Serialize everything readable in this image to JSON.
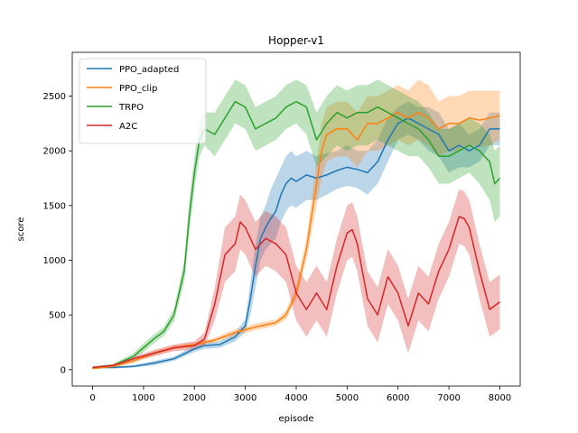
{
  "chart_data": {
    "type": "line",
    "title": "Hopper-v1",
    "xlabel": "episode",
    "ylabel": "score",
    "xlim": [
      -400,
      8400
    ],
    "ylim": [
      -150,
      2900
    ],
    "xticks": [
      0,
      1000,
      2000,
      3000,
      4000,
      5000,
      6000,
      7000,
      8000
    ],
    "yticks": [
      0,
      500,
      1000,
      1500,
      2000,
      2500
    ],
    "grid": false,
    "legend_position": "top-left",
    "band_opacity": 0.3,
    "series": [
      {
        "name": "PPO_adapted",
        "color": "#1f77b4",
        "x": [
          0,
          400,
          800,
          1200,
          1600,
          2000,
          2200,
          2500,
          2800,
          3000,
          3100,
          3200,
          3300,
          3400,
          3500,
          3600,
          3700,
          3800,
          3900,
          4000,
          4200,
          4400,
          4600,
          4800,
          5000,
          5200,
          5400,
          5600,
          5800,
          6000,
          6200,
          6400,
          6600,
          6800,
          7000,
          7200,
          7400,
          7600,
          7800,
          8000
        ],
        "y": [
          20,
          20,
          30,
          60,
          100,
          190,
          220,
          230,
          300,
          400,
          650,
          950,
          1200,
          1300,
          1380,
          1450,
          1600,
          1700,
          1750,
          1720,
          1780,
          1750,
          1780,
          1820,
          1850,
          1830,
          1800,
          1900,
          2100,
          2250,
          2300,
          2250,
          2200,
          2150,
          2000,
          2050,
          2000,
          2050,
          2200,
          2200
        ],
        "lower": [
          10,
          10,
          20,
          40,
          80,
          160,
          190,
          200,
          260,
          340,
          500,
          750,
          1000,
          1100,
          1150,
          1200,
          1350,
          1450,
          1500,
          1480,
          1550,
          1550,
          1600,
          1650,
          1680,
          1660,
          1600,
          1700,
          1900,
          2100,
          2150,
          2100,
          2000,
          1950,
          1800,
          1850,
          1850,
          1900,
          2050,
          2050
        ],
        "upper": [
          30,
          30,
          40,
          80,
          120,
          220,
          250,
          260,
          340,
          460,
          800,
          1150,
          1400,
          1500,
          1650,
          1750,
          1850,
          1950,
          2000,
          1950,
          2000,
          1950,
          1980,
          2000,
          2050,
          2000,
          2000,
          2100,
          2300,
          2400,
          2450,
          2400,
          2400,
          2350,
          2200,
          2250,
          2150,
          2200,
          2350,
          2350
        ]
      },
      {
        "name": "PPO_clip",
        "color": "#ff7f0e",
        "x": [
          0,
          400,
          800,
          1200,
          1600,
          2000,
          2400,
          2800,
          3200,
          3600,
          3800,
          4000,
          4200,
          4400,
          4500,
          4600,
          4800,
          5000,
          5200,
          5400,
          5600,
          5800,
          6000,
          6200,
          6400,
          6600,
          6800,
          7000,
          7200,
          7400,
          7600,
          7800,
          8000
        ],
        "y": [
          10,
          30,
          80,
          150,
          200,
          230,
          270,
          340,
          390,
          430,
          500,
          700,
          1100,
          1700,
          2000,
          2150,
          2200,
          2200,
          2100,
          2250,
          2250,
          2300,
          2350,
          2300,
          2350,
          2300,
          2200,
          2250,
          2250,
          2300,
          2280,
          2300,
          2320
        ],
        "lower": [
          5,
          20,
          60,
          130,
          180,
          210,
          250,
          310,
          360,
          400,
          460,
          640,
          1000,
          1500,
          1750,
          1900,
          1950,
          1950,
          1850,
          2000,
          2000,
          2050,
          2100,
          2050,
          2100,
          2050,
          1950,
          2000,
          2000,
          2050,
          2030,
          2050,
          2100
        ],
        "upper": [
          15,
          40,
          100,
          170,
          220,
          250,
          290,
          370,
          420,
          460,
          540,
          760,
          1200,
          1900,
          2250,
          2400,
          2450,
          2450,
          2350,
          2500,
          2500,
          2550,
          2600,
          2550,
          2650,
          2600,
          2450,
          2500,
          2500,
          2550,
          2550,
          2550,
          2550
        ]
      },
      {
        "name": "TRPO",
        "color": "#2ca02c",
        "x": [
          0,
          400,
          800,
          1000,
          1200,
          1400,
          1600,
          1800,
          1900,
          2000,
          2100,
          2200,
          2400,
          2600,
          2800,
          3000,
          3200,
          3400,
          3600,
          3800,
          4000,
          4200,
          4400,
          4600,
          4800,
          5000,
          5200,
          5400,
          5600,
          5800,
          6000,
          6200,
          6400,
          6600,
          6800,
          7000,
          7200,
          7400,
          7600,
          7800,
          7900,
          8000
        ],
        "y": [
          20,
          40,
          120,
          200,
          280,
          350,
          500,
          900,
          1400,
          1800,
          2100,
          2200,
          2150,
          2300,
          2450,
          2400,
          2200,
          2250,
          2300,
          2400,
          2450,
          2400,
          2100,
          2250,
          2350,
          2300,
          2350,
          2350,
          2400,
          2350,
          2300,
          2250,
          2200,
          2100,
          1950,
          1950,
          2000,
          2050,
          2000,
          1900,
          1700,
          1750
        ],
        "lower": [
          10,
          30,
          90,
          160,
          240,
          310,
          440,
          800,
          1250,
          1650,
          1950,
          2050,
          1950,
          2100,
          2250,
          2200,
          2000,
          2050,
          2100,
          2200,
          2250,
          2150,
          1850,
          1950,
          2050,
          2000,
          2050,
          2050,
          2100,
          2050,
          2000,
          1950,
          1950,
          1850,
          1700,
          1700,
          1750,
          1800,
          1700,
          1550,
          1350,
          1400
        ],
        "upper": [
          30,
          50,
          150,
          240,
          320,
          390,
          560,
          1000,
          1550,
          1950,
          2250,
          2350,
          2350,
          2500,
          2650,
          2600,
          2400,
          2450,
          2500,
          2600,
          2650,
          2600,
          2350,
          2500,
          2600,
          2550,
          2600,
          2600,
          2650,
          2600,
          2550,
          2500,
          2450,
          2350,
          2200,
          2200,
          2250,
          2300,
          2250,
          2150,
          2000,
          2050
        ]
      },
      {
        "name": "A2C",
        "color": "#d62728",
        "x": [
          0,
          400,
          800,
          1200,
          1600,
          2000,
          2200,
          2400,
          2600,
          2800,
          2900,
          3000,
          3200,
          3400,
          3600,
          3800,
          4000,
          4200,
          4400,
          4600,
          4800,
          5000,
          5100,
          5200,
          5400,
          5600,
          5800,
          6000,
          6200,
          6400,
          6600,
          6800,
          7000,
          7200,
          7300,
          7400,
          7600,
          7800,
          8000
        ],
        "y": [
          20,
          40,
          100,
          150,
          200,
          220,
          280,
          600,
          1050,
          1150,
          1350,
          1300,
          1100,
          1200,
          1150,
          1050,
          700,
          550,
          700,
          550,
          950,
          1250,
          1280,
          1150,
          650,
          500,
          850,
          700,
          400,
          700,
          600,
          900,
          1100,
          1400,
          1380,
          1300,
          900,
          550,
          620
        ],
        "lower": [
          10,
          30,
          80,
          120,
          170,
          180,
          220,
          450,
          800,
          900,
          1100,
          1050,
          850,
          950,
          900,
          800,
          450,
          300,
          450,
          300,
          700,
          1000,
          1030,
          900,
          400,
          250,
          600,
          450,
          150,
          450,
          350,
          650,
          850,
          1150,
          1130,
          1050,
          650,
          300,
          370
        ],
        "upper": [
          30,
          50,
          120,
          180,
          230,
          260,
          340,
          750,
          1300,
          1400,
          1600,
          1550,
          1350,
          1450,
          1400,
          1300,
          950,
          800,
          950,
          800,
          1200,
          1500,
          1530,
          1400,
          900,
          750,
          1100,
          950,
          650,
          950,
          850,
          1150,
          1350,
          1650,
          1630,
          1550,
          1150,
          800,
          870
        ]
      }
    ]
  }
}
